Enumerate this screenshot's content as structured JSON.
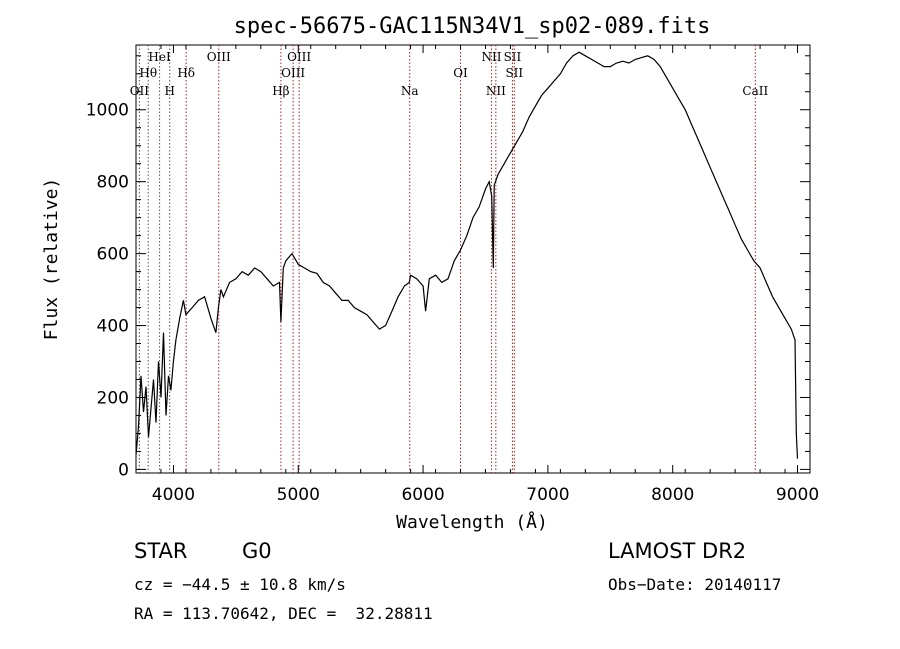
{
  "chart_data": {
    "type": "line",
    "title": "spec-56675-GAC115N34V1_sp02-089.fits",
    "xlabel": "Wavelength (Å)",
    "ylabel": "Flux (relative)",
    "xlim": [
      3700,
      9100
    ],
    "ylim": [
      -10,
      1180
    ],
    "x_ticks": [
      4000,
      5000,
      6000,
      7000,
      8000,
      9000
    ],
    "y_ticks": [
      0,
      200,
      400,
      600,
      800,
      1000
    ],
    "grid": false,
    "series": [
      {
        "x": [
          3700,
          3720,
          3740,
          3760,
          3780,
          3800,
          3820,
          3840,
          3860,
          3880,
          3900,
          3920,
          3940,
          3960,
          3980,
          4000,
          4020,
          4050,
          4080,
          4100,
          4150,
          4200,
          4250,
          4300,
          4340,
          4360,
          4380,
          4400,
          4450,
          4500,
          4550,
          4600,
          4650,
          4700,
          4750,
          4800,
          4850,
          4861,
          4880,
          4900,
          4950,
          5000,
          5050,
          5100,
          5150,
          5200,
          5250,
          5300,
          5350,
          5400,
          5450,
          5500,
          5550,
          5600,
          5650,
          5700,
          5750,
          5800,
          5850,
          5890,
          5900,
          5950,
          6000,
          6020,
          6050,
          6100,
          6150,
          6200,
          6250,
          6300,
          6350,
          6400,
          6450,
          6500,
          6530,
          6550,
          6563,
          6570,
          6600,
          6650,
          6700,
          6750,
          6800,
          6850,
          6900,
          6950,
          7000,
          7050,
          7100,
          7150,
          7200,
          7250,
          7300,
          7350,
          7400,
          7450,
          7500,
          7550,
          7600,
          7650,
          7700,
          7750,
          7800,
          7850,
          7900,
          7950,
          8000,
          8050,
          8100,
          8150,
          8200,
          8250,
          8300,
          8350,
          8400,
          8450,
          8500,
          8550,
          8600,
          8650,
          8700,
          8750,
          8800,
          8850,
          8900,
          8950,
          8980,
          8990,
          9000
        ],
        "values": [
          40,
          120,
          260,
          160,
          230,
          90,
          170,
          250,
          130,
          300,
          200,
          380,
          150,
          260,
          220,
          300,
          360,
          420,
          470,
          430,
          450,
          470,
          480,
          420,
          380,
          450,
          500,
          480,
          520,
          530,
          550,
          540,
          560,
          550,
          530,
          510,
          520,
          410,
          560,
          580,
          600,
          570,
          560,
          550,
          545,
          520,
          510,
          490,
          470,
          470,
          450,
          440,
          430,
          410,
          390,
          400,
          440,
          480,
          510,
          520,
          540,
          530,
          510,
          440,
          530,
          540,
          520,
          530,
          580,
          610,
          650,
          700,
          730,
          780,
          800,
          760,
          560,
          790,
          820,
          850,
          880,
          910,
          940,
          980,
          1010,
          1040,
          1060,
          1080,
          1100,
          1130,
          1150,
          1160,
          1150,
          1140,
          1130,
          1120,
          1120,
          1130,
          1135,
          1130,
          1140,
          1145,
          1150,
          1140,
          1120,
          1090,
          1060,
          1030,
          1000,
          960,
          920,
          880,
          840,
          800,
          760,
          720,
          680,
          640,
          610,
          580,
          560,
          520,
          480,
          450,
          420,
          390,
          360,
          100,
          30
        ]
      }
    ],
    "line_markers": [
      {
        "label": "OII",
        "x": 3727,
        "row": 3
      },
      {
        "label": "Hθ",
        "x": 3798,
        "row": 2
      },
      {
        "label": "HeI",
        "x": 3889,
        "row": 1
      },
      {
        "label": "H",
        "x": 3970,
        "row": 3
      },
      {
        "label": "Hδ",
        "x": 4102,
        "row": 2
      },
      {
        "label": "OIII",
        "x": 4363,
        "row": 1
      },
      {
        "label": "Hβ",
        "x": 4861,
        "row": 3
      },
      {
        "label": "OIII",
        "x": 4959,
        "row": 2
      },
      {
        "label": "OIII",
        "x": 5007,
        "row": 1
      },
      {
        "label": "Na",
        "x": 5893,
        "row": 3
      },
      {
        "label": "OI",
        "x": 6300,
        "row": 2
      },
      {
        "label": "NII",
        "x": 6548,
        "row": 1
      },
      {
        "label": "NII",
        "x": 6583,
        "row": 3
      },
      {
        "label": "SII",
        "x": 6716,
        "row": 1
      },
      {
        "label": "SII",
        "x": 6731,
        "row": 2
      },
      {
        "label": "CaII",
        "x": 8662,
        "row": 3
      }
    ]
  },
  "info": {
    "object_class": "STAR",
    "subclass": "G0",
    "survey": "LAMOST DR2",
    "redshift": "cz = −44.5 ± 10.8 km/s",
    "obs_date": "Obs−Date: 20140117",
    "coords": "RA = 113.70642, DEC =  32.28811"
  },
  "colors": {
    "spectrum": "#000000",
    "marker_red": "#b22222",
    "marker_gray": "#555555"
  }
}
